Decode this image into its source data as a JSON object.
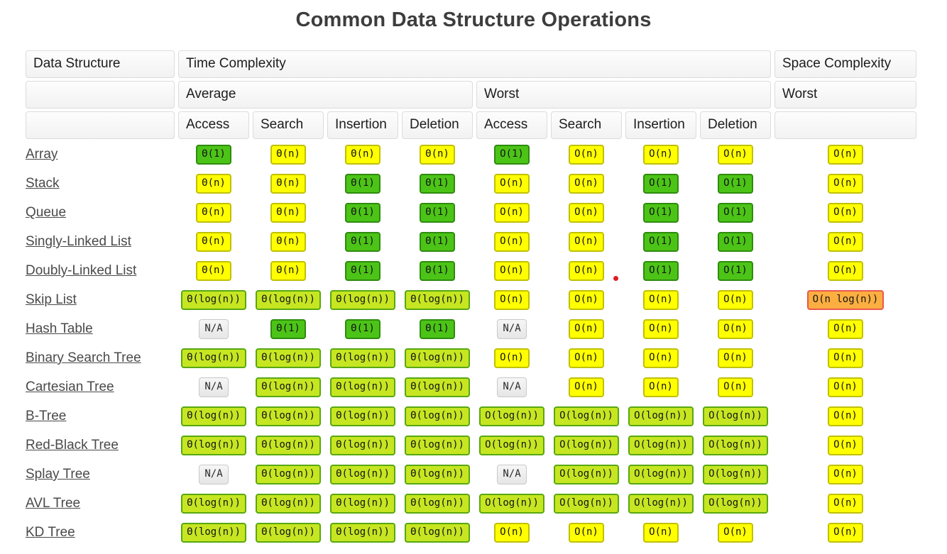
{
  "title": "Common Data Structure Operations",
  "colors": {
    "title_color": "#3d3d3d",
    "link_color": "#4a4a4a",
    "header_bg_top": "#fdfdfd",
    "header_bg": "#f2f2f2",
    "header_border": "#dcdcdc",
    "green_bg": "#4cc417",
    "green_border": "#2e8b0e",
    "yellow_bg": "#ffff00",
    "yellow_border": "#c0c000",
    "yellowgreen_bg": "#c6e622",
    "yellowgreen_border": "#58a810",
    "orange_bg": "#fcae41",
    "orange_border": "#e9584f",
    "na_bg": "#e6e6e6",
    "na_border": "#c9c9c9",
    "red_dot": "#e01b24"
  },
  "table": {
    "header": {
      "data_structure": "Data Structure",
      "time_complexity": "Time Complexity",
      "space_complexity": "Space Complexity",
      "average": "Average",
      "worst": "Worst",
      "space_worst": "Worst",
      "operations": [
        "Access",
        "Search",
        "Insertion",
        "Deletion"
      ]
    },
    "red_dot_marker": {
      "row_index": 4,
      "cell_index": 5
    },
    "rows": [
      {
        "name": "Array",
        "cells": [
          {
            "text": "Θ(1)",
            "level": "green"
          },
          {
            "text": "Θ(n)",
            "level": "yellow"
          },
          {
            "text": "Θ(n)",
            "level": "yellow"
          },
          {
            "text": "Θ(n)",
            "level": "yellow"
          },
          {
            "text": "O(1)",
            "level": "green"
          },
          {
            "text": "O(n)",
            "level": "yellow"
          },
          {
            "text": "O(n)",
            "level": "yellow"
          },
          {
            "text": "O(n)",
            "level": "yellow"
          },
          {
            "text": "O(n)",
            "level": "yellow"
          }
        ]
      },
      {
        "name": "Stack",
        "cells": [
          {
            "text": "Θ(n)",
            "level": "yellow"
          },
          {
            "text": "Θ(n)",
            "level": "yellow"
          },
          {
            "text": "Θ(1)",
            "level": "green"
          },
          {
            "text": "Θ(1)",
            "level": "green"
          },
          {
            "text": "O(n)",
            "level": "yellow"
          },
          {
            "text": "O(n)",
            "level": "yellow"
          },
          {
            "text": "O(1)",
            "level": "green"
          },
          {
            "text": "O(1)",
            "level": "green"
          },
          {
            "text": "O(n)",
            "level": "yellow"
          }
        ]
      },
      {
        "name": "Queue",
        "cells": [
          {
            "text": "Θ(n)",
            "level": "yellow"
          },
          {
            "text": "Θ(n)",
            "level": "yellow"
          },
          {
            "text": "Θ(1)",
            "level": "green"
          },
          {
            "text": "Θ(1)",
            "level": "green"
          },
          {
            "text": "O(n)",
            "level": "yellow"
          },
          {
            "text": "O(n)",
            "level": "yellow"
          },
          {
            "text": "O(1)",
            "level": "green"
          },
          {
            "text": "O(1)",
            "level": "green"
          },
          {
            "text": "O(n)",
            "level": "yellow"
          }
        ]
      },
      {
        "name": "Singly-Linked List",
        "cells": [
          {
            "text": "Θ(n)",
            "level": "yellow"
          },
          {
            "text": "Θ(n)",
            "level": "yellow"
          },
          {
            "text": "Θ(1)",
            "level": "green"
          },
          {
            "text": "Θ(1)",
            "level": "green"
          },
          {
            "text": "O(n)",
            "level": "yellow"
          },
          {
            "text": "O(n)",
            "level": "yellow"
          },
          {
            "text": "O(1)",
            "level": "green"
          },
          {
            "text": "O(1)",
            "level": "green"
          },
          {
            "text": "O(n)",
            "level": "yellow"
          }
        ]
      },
      {
        "name": "Doubly-Linked List",
        "cells": [
          {
            "text": "Θ(n)",
            "level": "yellow"
          },
          {
            "text": "Θ(n)",
            "level": "yellow"
          },
          {
            "text": "Θ(1)",
            "level": "green"
          },
          {
            "text": "Θ(1)",
            "level": "green"
          },
          {
            "text": "O(n)",
            "level": "yellow"
          },
          {
            "text": "O(n)",
            "level": "yellow"
          },
          {
            "text": "O(1)",
            "level": "green"
          },
          {
            "text": "O(1)",
            "level": "green"
          },
          {
            "text": "O(n)",
            "level": "yellow"
          }
        ]
      },
      {
        "name": "Skip List",
        "cells": [
          {
            "text": "Θ(log(n))",
            "level": "yellowgreen"
          },
          {
            "text": "Θ(log(n))",
            "level": "yellowgreen"
          },
          {
            "text": "Θ(log(n))",
            "level": "yellowgreen"
          },
          {
            "text": "Θ(log(n))",
            "level": "yellowgreen"
          },
          {
            "text": "O(n)",
            "level": "yellow"
          },
          {
            "text": "O(n)",
            "level": "yellow"
          },
          {
            "text": "O(n)",
            "level": "yellow"
          },
          {
            "text": "O(n)",
            "level": "yellow"
          },
          {
            "text": "O(n log(n))",
            "level": "orange"
          }
        ]
      },
      {
        "name": "Hash Table",
        "cells": [
          {
            "text": "N/A",
            "level": "na"
          },
          {
            "text": "Θ(1)",
            "level": "green"
          },
          {
            "text": "Θ(1)",
            "level": "green"
          },
          {
            "text": "Θ(1)",
            "level": "green"
          },
          {
            "text": "N/A",
            "level": "na"
          },
          {
            "text": "O(n)",
            "level": "yellow"
          },
          {
            "text": "O(n)",
            "level": "yellow"
          },
          {
            "text": "O(n)",
            "level": "yellow"
          },
          {
            "text": "O(n)",
            "level": "yellow"
          }
        ]
      },
      {
        "name": "Binary Search Tree",
        "cells": [
          {
            "text": "Θ(log(n))",
            "level": "yellowgreen"
          },
          {
            "text": "Θ(log(n))",
            "level": "yellowgreen"
          },
          {
            "text": "Θ(log(n))",
            "level": "yellowgreen"
          },
          {
            "text": "Θ(log(n))",
            "level": "yellowgreen"
          },
          {
            "text": "O(n)",
            "level": "yellow"
          },
          {
            "text": "O(n)",
            "level": "yellow"
          },
          {
            "text": "O(n)",
            "level": "yellow"
          },
          {
            "text": "O(n)",
            "level": "yellow"
          },
          {
            "text": "O(n)",
            "level": "yellow"
          }
        ]
      },
      {
        "name": "Cartesian Tree",
        "cells": [
          {
            "text": "N/A",
            "level": "na"
          },
          {
            "text": "Θ(log(n))",
            "level": "yellowgreen"
          },
          {
            "text": "Θ(log(n))",
            "level": "yellowgreen"
          },
          {
            "text": "Θ(log(n))",
            "level": "yellowgreen"
          },
          {
            "text": "N/A",
            "level": "na"
          },
          {
            "text": "O(n)",
            "level": "yellow"
          },
          {
            "text": "O(n)",
            "level": "yellow"
          },
          {
            "text": "O(n)",
            "level": "yellow"
          },
          {
            "text": "O(n)",
            "level": "yellow"
          }
        ]
      },
      {
        "name": "B-Tree",
        "cells": [
          {
            "text": "Θ(log(n))",
            "level": "yellowgreen"
          },
          {
            "text": "Θ(log(n))",
            "level": "yellowgreen"
          },
          {
            "text": "Θ(log(n))",
            "level": "yellowgreen"
          },
          {
            "text": "Θ(log(n))",
            "level": "yellowgreen"
          },
          {
            "text": "O(log(n))",
            "level": "yellowgreen"
          },
          {
            "text": "O(log(n))",
            "level": "yellowgreen"
          },
          {
            "text": "O(log(n))",
            "level": "yellowgreen"
          },
          {
            "text": "O(log(n))",
            "level": "yellowgreen"
          },
          {
            "text": "O(n)",
            "level": "yellow"
          }
        ]
      },
      {
        "name": "Red-Black Tree",
        "cells": [
          {
            "text": "Θ(log(n))",
            "level": "yellowgreen"
          },
          {
            "text": "Θ(log(n))",
            "level": "yellowgreen"
          },
          {
            "text": "Θ(log(n))",
            "level": "yellowgreen"
          },
          {
            "text": "Θ(log(n))",
            "level": "yellowgreen"
          },
          {
            "text": "O(log(n))",
            "level": "yellowgreen"
          },
          {
            "text": "O(log(n))",
            "level": "yellowgreen"
          },
          {
            "text": "O(log(n))",
            "level": "yellowgreen"
          },
          {
            "text": "O(log(n))",
            "level": "yellowgreen"
          },
          {
            "text": "O(n)",
            "level": "yellow"
          }
        ]
      },
      {
        "name": "Splay Tree",
        "cells": [
          {
            "text": "N/A",
            "level": "na"
          },
          {
            "text": "Θ(log(n))",
            "level": "yellowgreen"
          },
          {
            "text": "Θ(log(n))",
            "level": "yellowgreen"
          },
          {
            "text": "Θ(log(n))",
            "level": "yellowgreen"
          },
          {
            "text": "N/A",
            "level": "na"
          },
          {
            "text": "O(log(n))",
            "level": "yellowgreen"
          },
          {
            "text": "O(log(n))",
            "level": "yellowgreen"
          },
          {
            "text": "O(log(n))",
            "level": "yellowgreen"
          },
          {
            "text": "O(n)",
            "level": "yellow"
          }
        ]
      },
      {
        "name": "AVL Tree",
        "cells": [
          {
            "text": "Θ(log(n))",
            "level": "yellowgreen"
          },
          {
            "text": "Θ(log(n))",
            "level": "yellowgreen"
          },
          {
            "text": "Θ(log(n))",
            "level": "yellowgreen"
          },
          {
            "text": "Θ(log(n))",
            "level": "yellowgreen"
          },
          {
            "text": "O(log(n))",
            "level": "yellowgreen"
          },
          {
            "text": "O(log(n))",
            "level": "yellowgreen"
          },
          {
            "text": "O(log(n))",
            "level": "yellowgreen"
          },
          {
            "text": "O(log(n))",
            "level": "yellowgreen"
          },
          {
            "text": "O(n)",
            "level": "yellow"
          }
        ]
      },
      {
        "name": "KD Tree",
        "cells": [
          {
            "text": "Θ(log(n))",
            "level": "yellowgreen"
          },
          {
            "text": "Θ(log(n))",
            "level": "yellowgreen"
          },
          {
            "text": "Θ(log(n))",
            "level": "yellowgreen"
          },
          {
            "text": "Θ(log(n))",
            "level": "yellowgreen"
          },
          {
            "text": "O(n)",
            "level": "yellow"
          },
          {
            "text": "O(n)",
            "level": "yellow"
          },
          {
            "text": "O(n)",
            "level": "yellow"
          },
          {
            "text": "O(n)",
            "level": "yellow"
          },
          {
            "text": "O(n)",
            "level": "yellow"
          }
        ]
      }
    ]
  }
}
